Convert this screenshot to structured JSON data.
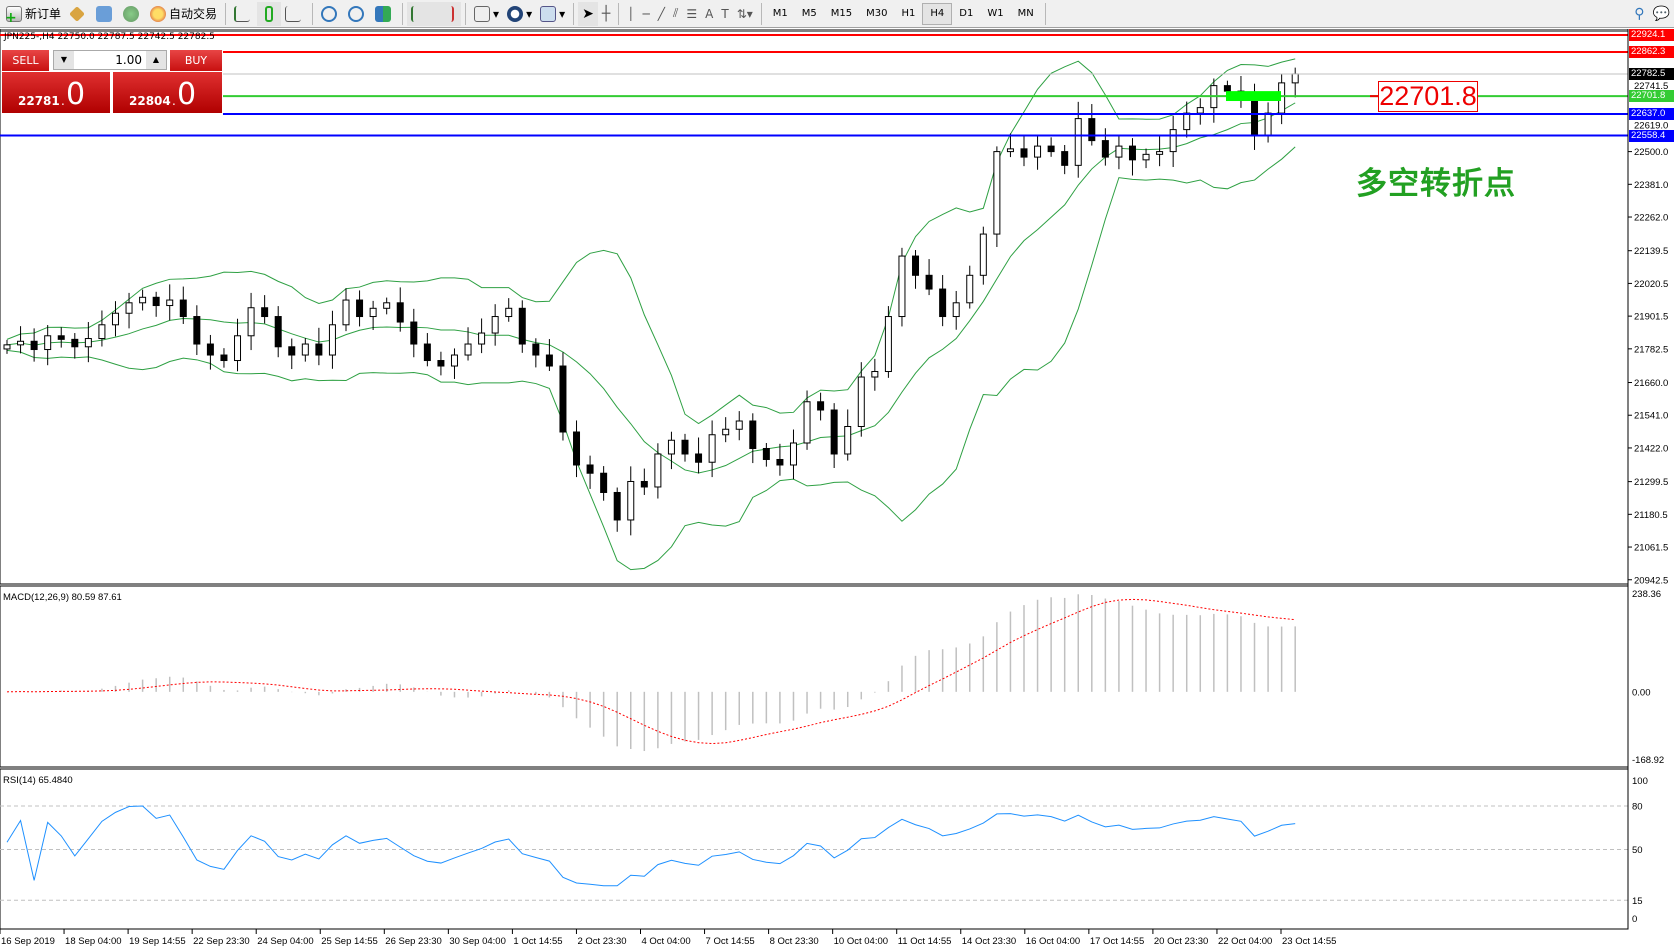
{
  "toolbar": {
    "new_order": "新订单",
    "auto_trading": "自动交易",
    "icons": [
      "new-order-icon",
      "gold-icon",
      "terminal-icon",
      "signal-icon",
      "auto-trading-icon",
      "bar-chart-icon",
      "candlestick-icon",
      "line-chart-icon",
      "zoom-in-icon",
      "zoom-out-icon",
      "tile-windows-icon",
      "autoscroll-icon",
      "chart-shift-icon",
      "indicators-icon",
      "periods-icon",
      "templates-icon",
      "cursor-icon",
      "crosshair-icon",
      "vertical-line-icon",
      "horizontal-line-icon",
      "trendline-icon",
      "fibonacci-channel-icon",
      "fibonacci-icon",
      "text-icon",
      "text-label-icon",
      "arrows-icon"
    ],
    "periods": [
      "M1",
      "M5",
      "M15",
      "M30",
      "H1",
      "H4",
      "D1",
      "W1",
      "MN"
    ],
    "active_period": "H4"
  },
  "chart": {
    "symbol_info": "JPN225-,H4  22750.0 22787.5 22742.5 22782.5",
    "trade_panel": {
      "sell": "SELL",
      "buy": "BUY",
      "lot": "1.00",
      "sell_price_main": "22781",
      "sell_price_big": "0",
      "buy_price_main": "22804",
      "buy_price_big": "0"
    },
    "price_axis": [
      "22500.0",
      "22381.0",
      "22262.0",
      "22139.5",
      "22020.5",
      "21901.5",
      "21782.5",
      "21660.0",
      "21541.0",
      "21422.0",
      "21299.5",
      "21180.5",
      "21061.5",
      "20942.5"
    ],
    "extra_axis": [
      "22741.5",
      "22619.0"
    ],
    "levels": [
      {
        "price": "22924.1",
        "color": "#ff0000"
      },
      {
        "price": "22862.3",
        "color": "#ff0000"
      },
      {
        "price": "22782.5",
        "color": "#000000"
      },
      {
        "price": "22701.8",
        "color": "#33cc33"
      },
      {
        "price": "22637.0",
        "color": "#0000ff"
      },
      {
        "price": "22558.4",
        "color": "#0000ff"
      }
    ],
    "price_label": "22701.8",
    "annotation": "多空转折点",
    "closes": [
      21797,
      21810,
      21780,
      21830,
      21817,
      21790,
      21820,
      21870,
      21912,
      21950,
      21970,
      21940,
      21960,
      21900,
      21800,
      21760,
      21740,
      21830,
      21932,
      21900,
      21790,
      21760,
      21800,
      21760,
      21870,
      21960,
      21900,
      21930,
      21950,
      21880,
      21800,
      21740,
      21720,
      21760,
      21800,
      21840,
      21900,
      21930,
      21800,
      21760,
      21720,
      21480,
      21360,
      21330,
      21260,
      21160,
      21300,
      21280,
      21400,
      21450,
      21400,
      21370,
      21470,
      21490,
      21520,
      21420,
      21380,
      21360,
      21440,
      21590,
      21560,
      21400,
      21500,
      21680,
      21700,
      21900,
      22120,
      22050,
      22000,
      21900,
      21950,
      22050,
      22200,
      22500,
      22510,
      22480,
      22520,
      22500,
      22450,
      22620,
      22540,
      22480,
      22520,
      22470,
      22490,
      22500,
      22580,
      22640,
      22660,
      22740,
      22720,
      22700,
      22560,
      22640,
      22750,
      22782.5
    ],
    "last_open": 22750.0
  },
  "macd": {
    "label": "MACD(12,26,9) 80.59 87.61",
    "axis": [
      "238.36",
      "0.00",
      "-168.92"
    ]
  },
  "rsi": {
    "label": "RSI(14) 65.4840",
    "axis": [
      "100",
      "80",
      "50",
      "15",
      "0"
    ]
  },
  "time_axis": [
    "16 Sep 2019",
    "18 Sep 04:00",
    "19 Sep 14:55",
    "22 Sep 23:30",
    "24 Sep 04:00",
    "25 Sep 14:55",
    "26 Sep 23:30",
    "30 Sep 04:00",
    "1 Oct 14:55",
    "2 Oct 23:30",
    "4 Oct 04:00",
    "7 Oct 14:55",
    "8 Oct 23:30",
    "10 Oct 04:00",
    "11 Oct 14:55",
    "14 Oct 23:30",
    "16 Oct 04:00",
    "17 Oct 14:55",
    "20 Oct 23:30",
    "22 Oct 04:00",
    "23 Oct 14:55"
  ]
}
